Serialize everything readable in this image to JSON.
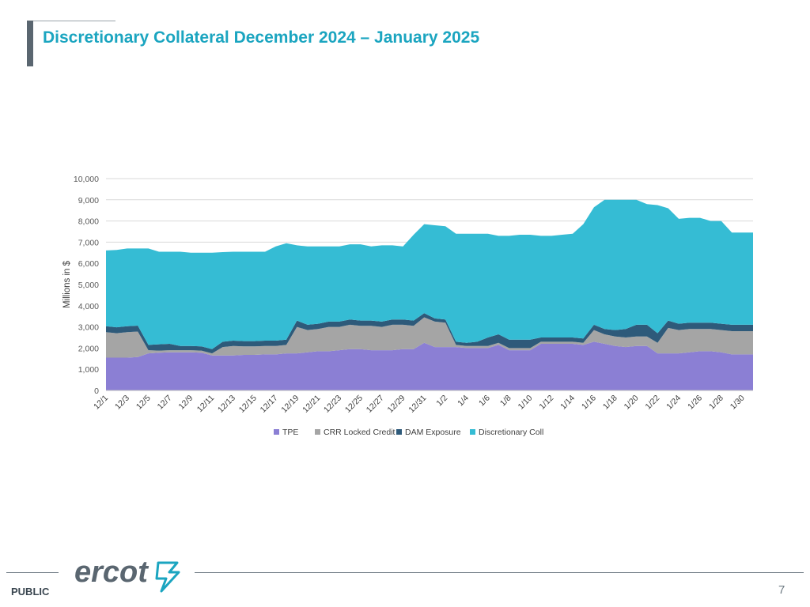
{
  "slide": {
    "title": "Discretionary Collateral December 2024 – January 2025",
    "footer_label": "PUBLIC",
    "page_number": "7",
    "logo_text": "ercot"
  },
  "colors": {
    "title": "#1ba5c0",
    "tpe": "#8b7fd4",
    "crr": "#a5a5a5",
    "dam": "#2e5a7a",
    "disc": "#35bcd4"
  },
  "chart_data": {
    "type": "area",
    "stacked": true,
    "ylabel": "Millions in $",
    "xlabel": "",
    "ylim": [
      0,
      10000
    ],
    "yticks": [
      0,
      1000,
      2000,
      3000,
      4000,
      5000,
      6000,
      7000,
      8000,
      9000,
      10000
    ],
    "ytick_labels": [
      "0",
      "1,000",
      "2,000",
      "3,000",
      "4,000",
      "5,000",
      "6,000",
      "7,000",
      "8,000",
      "9,000",
      "10,000"
    ],
    "grid": true,
    "legend_position": "bottom",
    "categories": [
      "12/1",
      "12/2",
      "12/3",
      "12/4",
      "12/5",
      "12/6",
      "12/7",
      "12/8",
      "12/9",
      "12/10",
      "12/11",
      "12/12",
      "12/13",
      "12/14",
      "12/15",
      "12/16",
      "12/17",
      "12/18",
      "12/19",
      "12/20",
      "12/21",
      "12/22",
      "12/23",
      "12/24",
      "12/25",
      "12/26",
      "12/27",
      "12/28",
      "12/29",
      "12/30",
      "12/31",
      "1/1",
      "1/2",
      "1/3",
      "1/4",
      "1/5",
      "1/6",
      "1/7",
      "1/8",
      "1/9",
      "1/10",
      "1/11",
      "1/12",
      "1/13",
      "1/14",
      "1/15",
      "1/16",
      "1/17",
      "1/18",
      "1/19",
      "1/20",
      "1/21",
      "1/22",
      "1/23",
      "1/24",
      "1/25",
      "1/26",
      "1/27",
      "1/28",
      "1/29",
      "1/30",
      "1/31"
    ],
    "tick_labels": [
      "12/1",
      "12/3",
      "12/5",
      "12/7",
      "12/9",
      "12/11",
      "12/13",
      "12/15",
      "12/17",
      "12/19",
      "12/21",
      "12/23",
      "12/25",
      "12/27",
      "12/29",
      "12/31",
      "1/2",
      "1/4",
      "1/6",
      "1/8",
      "1/10",
      "1/12",
      "1/14",
      "1/16",
      "1/18",
      "1/20",
      "1/22",
      "1/24",
      "1/26",
      "1/28",
      "1/30"
    ],
    "series": [
      {
        "name": "TPE",
        "color_key": "tpe",
        "values": [
          1550,
          1550,
          1550,
          1580,
          1750,
          1780,
          1800,
          1800,
          1800,
          1780,
          1650,
          1650,
          1650,
          1680,
          1680,
          1700,
          1700,
          1750,
          1750,
          1800,
          1850,
          1850,
          1900,
          1950,
          1950,
          1900,
          1900,
          1900,
          1950,
          1950,
          2250,
          2050,
          2050,
          2050,
          2000,
          2000,
          2000,
          2150,
          1900,
          1900,
          1900,
          2200,
          2200,
          2200,
          2200,
          2150,
          2300,
          2200,
          2100,
          2050,
          2100,
          2100,
          1750,
          1750,
          1750,
          1800,
          1850,
          1850,
          1800,
          1700,
          1700,
          1700
        ]
      },
      {
        "name": "CRR Locked Credit",
        "color_key": "crr",
        "values": [
          1200,
          1150,
          1200,
          1200,
          150,
          100,
          100,
          100,
          100,
          100,
          100,
          400,
          450,
          400,
          400,
          400,
          400,
          400,
          1250,
          1050,
          1050,
          1150,
          1100,
          1150,
          1100,
          1150,
          1100,
          1200,
          1150,
          1100,
          1200,
          1200,
          1150,
          100,
          100,
          100,
          100,
          100,
          100,
          100,
          100,
          100,
          100,
          100,
          100,
          100,
          550,
          450,
          450,
          450,
          450,
          450,
          500,
          1200,
          1100,
          1100,
          1050,
          1050,
          1050,
          1100,
          1100,
          1100
        ]
      },
      {
        "name": "DAM Exposure",
        "color_key": "dam",
        "values": [
          280,
          280,
          280,
          280,
          250,
          300,
          300,
          200,
          200,
          200,
          200,
          250,
          250,
          250,
          250,
          250,
          250,
          250,
          300,
          250,
          250,
          250,
          250,
          250,
          250,
          250,
          250,
          250,
          250,
          250,
          200,
          150,
          150,
          150,
          150,
          200,
          400,
          400,
          400,
          400,
          400,
          200,
          200,
          200,
          200,
          200,
          250,
          250,
          300,
          400,
          550,
          550,
          450,
          350,
          300,
          300,
          300,
          300,
          300,
          300,
          300,
          300
        ]
      },
      {
        "name": "Discretionary Coll",
        "color_key": "disc",
        "values": [
          3580,
          3650,
          3670,
          3640,
          4550,
          4370,
          4350,
          4450,
          4400,
          4420,
          4550,
          4230,
          4200,
          4220,
          4220,
          4200,
          4450,
          4550,
          3550,
          3700,
          3650,
          3550,
          3550,
          3550,
          3600,
          3500,
          3600,
          3500,
          3450,
          4050,
          4200,
          4400,
          4400,
          5100,
          5150,
          5100,
          4900,
          4650,
          4900,
          4950,
          4950,
          4800,
          4800,
          4850,
          4900,
          5400,
          5550,
          6100,
          6150,
          6100,
          5900,
          5700,
          6050,
          5300,
          4950,
          4950,
          4950,
          4800,
          4850,
          4350,
          4350,
          4350
        ]
      }
    ]
  }
}
